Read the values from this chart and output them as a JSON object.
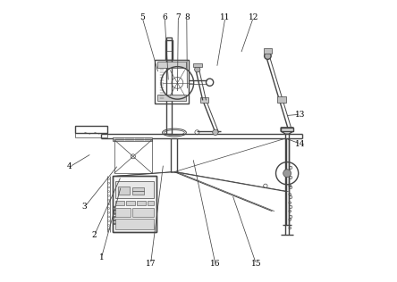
{
  "bg_color": "#ffffff",
  "line_color": "#444444",
  "label_color": "#000000",
  "fig_width": 4.44,
  "fig_height": 3.16,
  "dpi": 100,
  "leader_data": {
    "1": {
      "lp": [
        0.155,
        0.085
      ],
      "ep": [
        0.225,
        0.34
      ]
    },
    "2": {
      "lp": [
        0.13,
        0.165
      ],
      "ep": [
        0.225,
        0.375
      ]
    },
    "3": {
      "lp": [
        0.095,
        0.265
      ],
      "ep": [
        0.215,
        0.415
      ]
    },
    "4": {
      "lp": [
        0.042,
        0.408
      ],
      "ep": [
        0.12,
        0.455
      ]
    },
    "5": {
      "lp": [
        0.3,
        0.94
      ],
      "ep": [
        0.358,
        0.74
      ]
    },
    "6": {
      "lp": [
        0.38,
        0.94
      ],
      "ep": [
        0.393,
        0.71
      ]
    },
    "7": {
      "lp": [
        0.428,
        0.94
      ],
      "ep": [
        0.425,
        0.67
      ]
    },
    "8": {
      "lp": [
        0.458,
        0.94
      ],
      "ep": [
        0.46,
        0.68
      ]
    },
    "11": {
      "lp": [
        0.595,
        0.94
      ],
      "ep": [
        0.565,
        0.76
      ]
    },
    "12": {
      "lp": [
        0.695,
        0.94
      ],
      "ep": [
        0.65,
        0.81
      ]
    },
    "13": {
      "lp": [
        0.862,
        0.595
      ],
      "ep": [
        0.808,
        0.59
      ]
    },
    "14": {
      "lp": [
        0.862,
        0.49
      ],
      "ep": [
        0.808,
        0.51
      ]
    },
    "15": {
      "lp": [
        0.705,
        0.062
      ],
      "ep": [
        0.62,
        0.31
      ]
    },
    "16": {
      "lp": [
        0.56,
        0.062
      ],
      "ep": [
        0.48,
        0.44
      ]
    },
    "17": {
      "lp": [
        0.33,
        0.062
      ],
      "ep": [
        0.375,
        0.42
      ]
    }
  }
}
